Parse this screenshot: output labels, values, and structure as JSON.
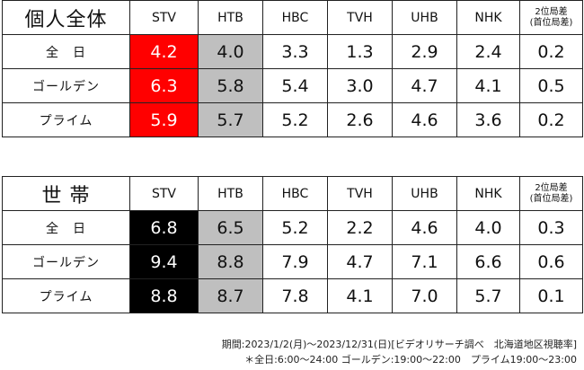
{
  "tables": [
    {
      "title": "個人全体",
      "columns": [
        "STV",
        "HTB",
        "HBC",
        "TVH",
        "UHB",
        "NHK"
      ],
      "last_col_line1": "2位局差",
      "last_col_line2": "(首位局差)",
      "rows": [
        {
          "label": "全　日",
          "values": [
            "4.2",
            "4.0",
            "3.3",
            "1.3",
            "2.9",
            "2.4",
            "0.2"
          ]
        },
        {
          "label": "ゴールデン",
          "values": [
            "6.3",
            "5.8",
            "5.4",
            "3.0",
            "4.7",
            "4.1",
            "0.5"
          ]
        },
        {
          "label": "プライム",
          "values": [
            "5.9",
            "5.7",
            "5.2",
            "2.6",
            "4.6",
            "3.6",
            "0.2"
          ]
        }
      ],
      "highlight_colors": {
        "first": "#ff0000",
        "second": "#bfbfbf"
      }
    },
    {
      "title": "世 帯",
      "columns": [
        "STV",
        "HTB",
        "HBC",
        "TVH",
        "UHB",
        "NHK"
      ],
      "last_col_line1": "2位局差",
      "last_col_line2": "(首位局差)",
      "rows": [
        {
          "label": "全　日",
          "values": [
            "6.8",
            "6.5",
            "5.2",
            "2.2",
            "4.6",
            "4.0",
            "0.3"
          ]
        },
        {
          "label": "ゴールデン",
          "values": [
            "9.4",
            "8.8",
            "7.9",
            "4.7",
            "7.1",
            "6.6",
            "0.6"
          ]
        },
        {
          "label": "プライム",
          "values": [
            "8.8",
            "8.7",
            "7.8",
            "4.1",
            "7.0",
            "5.7",
            "0.1"
          ]
        }
      ],
      "highlight_colors": {
        "first": "#000000",
        "second": "#bfbfbf"
      }
    }
  ],
  "footnote_line1": "期間:2023/1/2(月)～2023/12/31(日)[ビデオリサーチ調べ　北海道地区視聴率]",
  "footnote_line2": "＊全日:6:00～24:00 ゴールデン:19:00～22:00　プライム19:00～23:00"
}
